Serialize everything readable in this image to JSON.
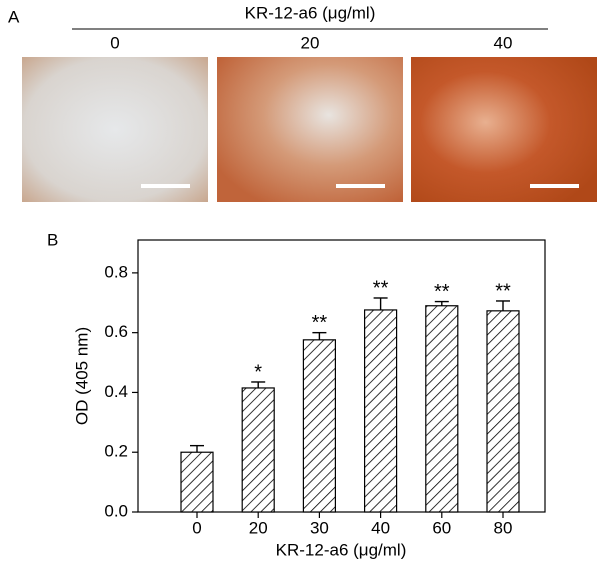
{
  "panel_a": {
    "label": "A",
    "title": "KR-12-a6 (μg/ml)",
    "images": [
      {
        "label": "0"
      },
      {
        "label": "20"
      },
      {
        "label": "40"
      }
    ]
  },
  "chart_data": {
    "type": "bar",
    "panel_label": "B",
    "x_label": "KR-12-a6 (μg/ml)",
    "y_label": "OD (405 nm)",
    "categories": [
      "0",
      "20",
      "30",
      "40",
      "60",
      "80"
    ],
    "values": [
      0.2,
      0.415,
      0.576,
      0.676,
      0.69,
      0.673
    ],
    "errors": [
      0.022,
      0.02,
      0.024,
      0.04,
      0.014,
      0.033
    ],
    "significance": [
      null,
      "*",
      "**",
      "**",
      "**",
      "**"
    ],
    "color": "#000000",
    "ylim": [
      0,
      0.91
    ],
    "yticks": [
      {
        "value": 0,
        "label": "0.0"
      },
      0.2,
      0.4,
      0.6,
      0.8
    ]
  }
}
